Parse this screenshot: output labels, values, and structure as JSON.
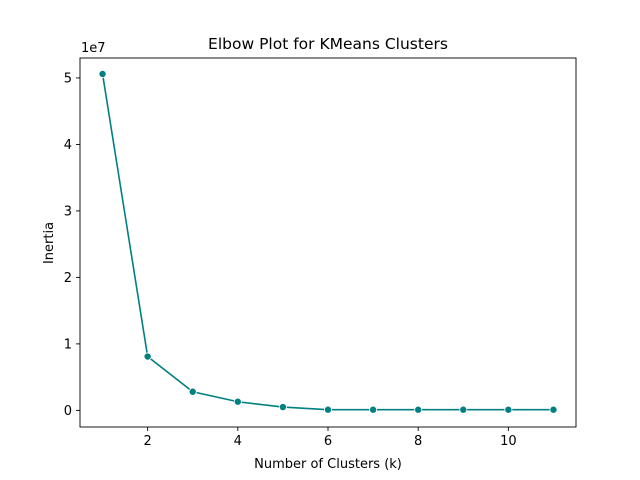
{
  "chart_data": {
    "type": "line",
    "title": "Elbow Plot for KMeans Clusters",
    "xlabel": "Number of Clusters (k)",
    "ylabel": "Inertia",
    "y_offset_label": "1e7",
    "xlim": [
      0.5,
      11.5
    ],
    "ylim": [
      -0.25,
      5.3
    ],
    "x_ticks": [
      2,
      4,
      6,
      8,
      10
    ],
    "y_ticks": [
      0,
      1,
      2,
      3,
      4,
      5
    ],
    "grid": false,
    "color": "#008080",
    "marker": "circle",
    "x": [
      1,
      2,
      3,
      4,
      5,
      6,
      7,
      8,
      9,
      10,
      11
    ],
    "y": [
      5.06,
      0.81,
      0.28,
      0.13,
      0.05,
      0.01,
      0.01,
      0.01,
      0.01,
      0.01,
      0.01
    ]
  }
}
